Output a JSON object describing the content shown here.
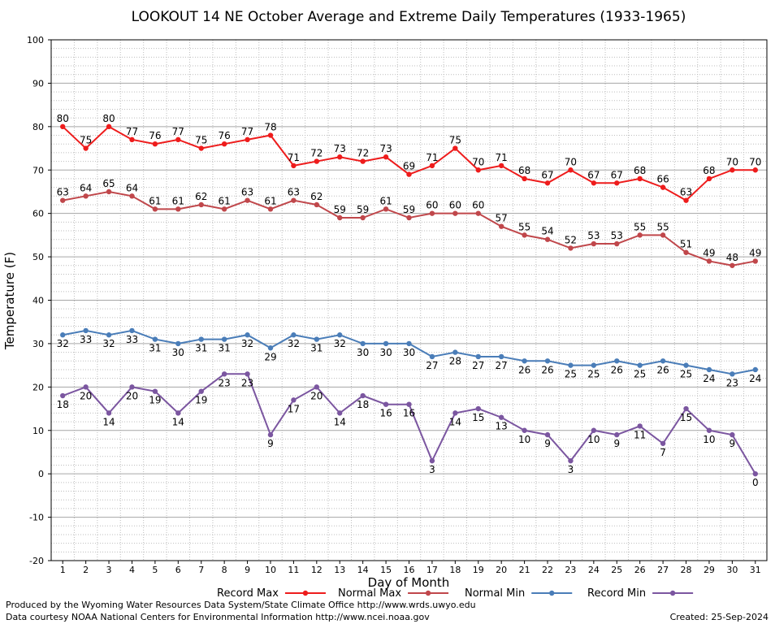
{
  "chart_data": {
    "type": "line",
    "title": "LOOKOUT 14 NE October Average and Extreme Daily Temperatures (1933-1965)",
    "xlabel": "Day of Month",
    "ylabel": "Temperature (F)",
    "xlim": [
      1,
      31
    ],
    "ylim": [
      -20,
      100
    ],
    "y_major_step": 10,
    "y_minor_step": 2,
    "grid": true,
    "legend_position": "bottom",
    "x": [
      1,
      2,
      3,
      4,
      5,
      6,
      7,
      8,
      9,
      10,
      11,
      12,
      13,
      14,
      15,
      16,
      17,
      18,
      19,
      20,
      21,
      22,
      23,
      24,
      25,
      26,
      27,
      28,
      29,
      30,
      31
    ],
    "series": [
      {
        "name": "Record Max",
        "color": "#ee1c1c",
        "label_position": "above",
        "values": [
          80,
          75,
          80,
          77,
          76,
          77,
          75,
          76,
          77,
          78,
          71,
          72,
          73,
          72,
          73,
          69,
          71,
          75,
          70,
          71,
          68,
          67,
          70,
          67,
          67,
          68,
          66,
          63,
          68,
          70,
          70
        ]
      },
      {
        "name": "Normal Max",
        "color": "#c0474b",
        "label_position": "above",
        "values": [
          63,
          64,
          65,
          64,
          61,
          61,
          62,
          61,
          63,
          61,
          63,
          62,
          59,
          59,
          61,
          59,
          60,
          60,
          60,
          57,
          55,
          54,
          52,
          53,
          53,
          55,
          55,
          51,
          49,
          48,
          49
        ]
      },
      {
        "name": "Normal Min",
        "color": "#4a7db8",
        "label_position": "below",
        "values": [
          32,
          33,
          32,
          33,
          31,
          30,
          31,
          31,
          32,
          29,
          32,
          31,
          32,
          30,
          30,
          30,
          27,
          28,
          27,
          27,
          26,
          26,
          25,
          25,
          26,
          25,
          26,
          25,
          24,
          23,
          24
        ]
      },
      {
        "name": "Record Min",
        "color": "#7b56a0",
        "label_position": "below",
        "values": [
          18,
          20,
          14,
          20,
          19,
          14,
          19,
          23,
          23,
          9,
          17,
          20,
          14,
          18,
          16,
          16,
          3,
          14,
          15,
          13,
          10,
          9,
          3,
          10,
          9,
          11,
          7,
          15,
          10,
          9,
          0
        ]
      }
    ]
  },
  "footer": {
    "produced_by": "Produced by the Wyoming Water Resources Data System/State Climate Office http://www.wrds.uwyo.edu",
    "courtesy": "Data courtesy NOAA National Centers for Environmental Information http://www.ncei.noaa.gov",
    "created": "Created:  25-Sep-2024"
  }
}
